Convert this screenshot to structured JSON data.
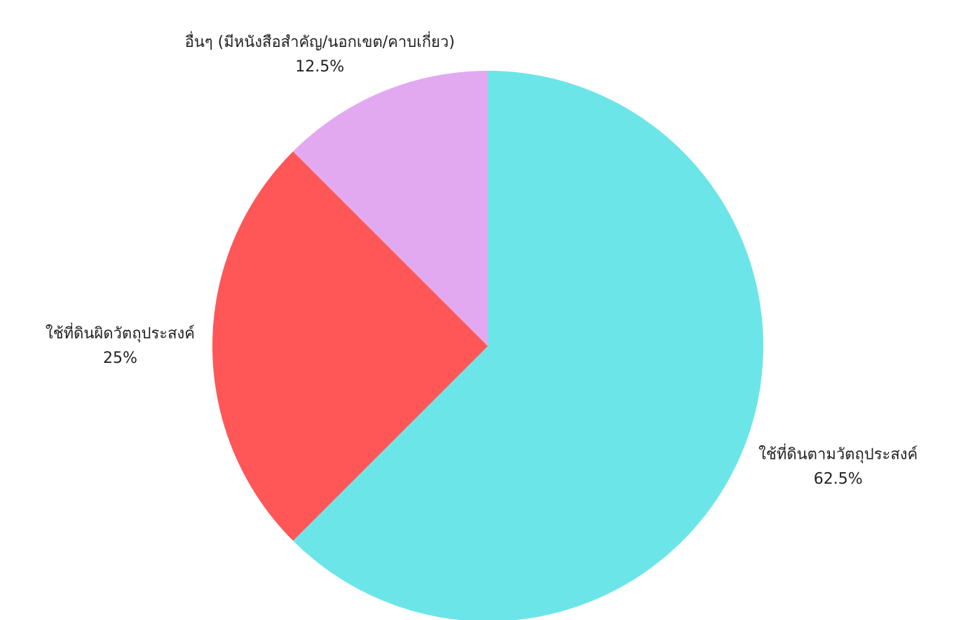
{
  "chart_data": {
    "type": "pie",
    "categories": [
      "ใช้ที่ดินตามวัตถุประสงค์",
      "ใช้ที่ดินผิดวัตถุประสงค์",
      "อื่นๆ (มีหนังสือสำคัญ/นอกเขต/คาบเกี่ยว)"
    ],
    "values": [
      62.5,
      25,
      12.5
    ],
    "value_labels": [
      "62.5%",
      "25%",
      "12.5%"
    ],
    "colors": [
      "#6ce5e8",
      "#ff5757",
      "#e2a9f1"
    ]
  }
}
